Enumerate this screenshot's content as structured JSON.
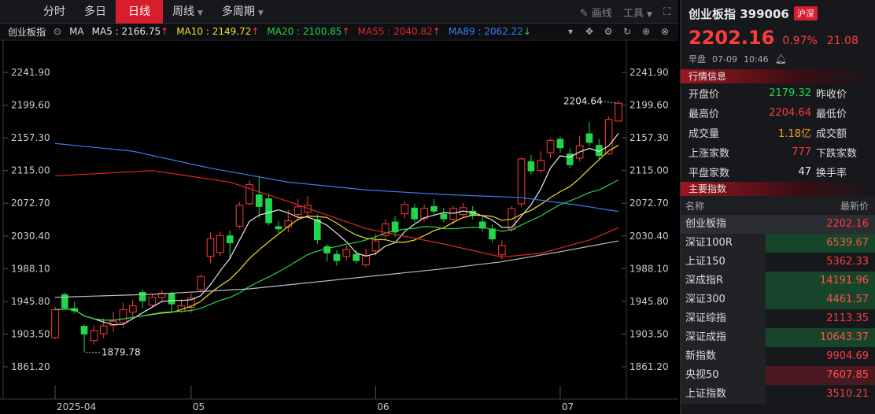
{
  "toolbar": {
    "tabs": [
      {
        "label": "分时",
        "active": false,
        "caret": false
      },
      {
        "label": "多日",
        "active": false,
        "caret": false
      },
      {
        "label": "日线",
        "active": true,
        "caret": false
      },
      {
        "label": "周线",
        "active": false,
        "caret": true
      },
      {
        "label": "多周期",
        "active": false,
        "caret": true
      }
    ],
    "draw_label": "画线",
    "tools_label": "工具"
  },
  "ma_bar": {
    "name": "创业板指",
    "indicator": "MA",
    "items": [
      {
        "label": "MA5 : 2166.75",
        "arrow": "↑",
        "color": "#e8e8e8"
      },
      {
        "label": "MA10 : 2149.72",
        "arrow": "↑",
        "color": "#f0e020"
      },
      {
        "label": "MA20 : 2100.85",
        "arrow": "↑",
        "color": "#22d64a"
      },
      {
        "label": "MA55 : 2040.82",
        "arrow": "↑",
        "color": "#e02828"
      },
      {
        "label": "MA89 : 2062.22",
        "arrow": "↓",
        "color": "#3a7cf0"
      }
    ]
  },
  "chart_data": {
    "type": "candlestick",
    "y_ticks": [
      "2241.90",
      "2199.60",
      "2157.30",
      "2115.00",
      "2072.70",
      "2030.40",
      "1988.10",
      "1945.80",
      "1903.50",
      "1861.20"
    ],
    "x_labels": [
      "2025-04",
      "05",
      "06",
      "07"
    ],
    "annotations": [
      {
        "text": "2204.64",
        "value": 2204.64
      },
      {
        "text": "1879.78",
        "value": 1879.78
      }
    ],
    "candles": [
      {
        "o": 1899,
        "c": 1935,
        "h": 1939,
        "l": 1897
      },
      {
        "o": 1955,
        "c": 1937,
        "h": 1957,
        "l": 1935
      },
      {
        "o": 1937,
        "c": 1933,
        "h": 1945,
        "l": 1930
      },
      {
        "o": 1914,
        "c": 1903,
        "h": 1916,
        "l": 1880
      },
      {
        "o": 1895,
        "c": 1908,
        "h": 1915,
        "l": 1890
      },
      {
        "o": 1904,
        "c": 1914,
        "h": 1924,
        "l": 1898
      },
      {
        "o": 1915,
        "c": 1920,
        "h": 1932,
        "l": 1906
      },
      {
        "o": 1918,
        "c": 1935,
        "h": 1944,
        "l": 1912
      },
      {
        "o": 1932,
        "c": 1940,
        "h": 1948,
        "l": 1926
      },
      {
        "o": 1958,
        "c": 1946,
        "h": 1961,
        "l": 1937
      },
      {
        "o": 1941,
        "c": 1951,
        "h": 1955,
        "l": 1937
      },
      {
        "o": 1951,
        "c": 1956,
        "h": 1960,
        "l": 1945
      },
      {
        "o": 1956,
        "c": 1942,
        "h": 1958,
        "l": 1933
      },
      {
        "o": 1933,
        "c": 1940,
        "h": 1949,
        "l": 1931
      },
      {
        "o": 1938,
        "c": 1950,
        "h": 1956,
        "l": 1931
      },
      {
        "o": 1961,
        "c": 1978,
        "h": 1980,
        "l": 1958
      },
      {
        "o": 2004,
        "c": 2027,
        "h": 2035,
        "l": 1995
      },
      {
        "o": 2009,
        "c": 2031,
        "h": 2036,
        "l": 2004
      },
      {
        "o": 2031,
        "c": 2021,
        "h": 2038,
        "l": 2000
      },
      {
        "o": 2043,
        "c": 2070,
        "h": 2074,
        "l": 2040
      },
      {
        "o": 2072,
        "c": 2097,
        "h": 2102,
        "l": 2070
      },
      {
        "o": 2084,
        "c": 2068,
        "h": 2108,
        "l": 2054
      },
      {
        "o": 2079,
        "c": 2047,
        "h": 2085,
        "l": 2044
      },
      {
        "o": 2043,
        "c": 2039,
        "h": 2050,
        "l": 2034
      },
      {
        "o": 2042,
        "c": 2050,
        "h": 2064,
        "l": 2035
      },
      {
        "o": 2058,
        "c": 2068,
        "h": 2078,
        "l": 2050
      },
      {
        "o": 2061,
        "c": 2070,
        "h": 2082,
        "l": 2054
      },
      {
        "o": 2052,
        "c": 2025,
        "h": 2058,
        "l": 2020
      },
      {
        "o": 2017,
        "c": 2008,
        "h": 2020,
        "l": 1997
      },
      {
        "o": 2007,
        "c": 1998,
        "h": 2012,
        "l": 1992
      },
      {
        "o": 2004,
        "c": 2013,
        "h": 2018,
        "l": 1999
      },
      {
        "o": 2007,
        "c": 1998,
        "h": 2012,
        "l": 1995
      },
      {
        "o": 1993,
        "c": 2005,
        "h": 2014,
        "l": 1990
      },
      {
        "o": 2011,
        "c": 2024,
        "h": 2033,
        "l": 2005
      },
      {
        "o": 2031,
        "c": 2046,
        "h": 2052,
        "l": 2027
      },
      {
        "o": 2049,
        "c": 2035,
        "h": 2056,
        "l": 2029
      },
      {
        "o": 2059,
        "c": 2071,
        "h": 2075,
        "l": 2053
      },
      {
        "o": 2067,
        "c": 2052,
        "h": 2072,
        "l": 2048
      },
      {
        "o": 2053,
        "c": 2066,
        "h": 2071,
        "l": 2049
      },
      {
        "o": 2069,
        "c": 2062,
        "h": 2078,
        "l": 2058
      },
      {
        "o": 2059,
        "c": 2052,
        "h": 2067,
        "l": 2048
      },
      {
        "o": 2052,
        "c": 2066,
        "h": 2069,
        "l": 2046
      },
      {
        "o": 2058,
        "c": 2067,
        "h": 2073,
        "l": 2055
      },
      {
        "o": 2063,
        "c": 2057,
        "h": 2069,
        "l": 2052
      },
      {
        "o": 2049,
        "c": 2040,
        "h": 2056,
        "l": 2036
      },
      {
        "o": 2040,
        "c": 2026,
        "h": 2045,
        "l": 2022
      },
      {
        "o": 2006,
        "c": 2018,
        "h": 2025,
        "l": 2000
      },
      {
        "o": 2039,
        "c": 2066,
        "h": 2069,
        "l": 2035
      },
      {
        "o": 2072,
        "c": 2130,
        "h": 2132,
        "l": 2068
      },
      {
        "o": 2127,
        "c": 2114,
        "h": 2135,
        "l": 2110
      },
      {
        "o": 2115,
        "c": 2128,
        "h": 2140,
        "l": 2112
      },
      {
        "o": 2138,
        "c": 2154,
        "h": 2157,
        "l": 2131
      },
      {
        "o": 2156,
        "c": 2144,
        "h": 2159,
        "l": 2138
      },
      {
        "o": 2137,
        "c": 2122,
        "h": 2144,
        "l": 2118
      },
      {
        "o": 2131,
        "c": 2147,
        "h": 2160,
        "l": 2127
      },
      {
        "o": 2163,
        "c": 2151,
        "h": 2178,
        "l": 2146
      },
      {
        "o": 2148,
        "c": 2134,
        "h": 2156,
        "l": 2130
      },
      {
        "o": 2137,
        "c": 2181,
        "h": 2185,
        "l": 2135
      },
      {
        "o": 2179,
        "c": 2202,
        "h": 2205,
        "l": 2178
      }
    ]
  },
  "right_panel": {
    "title": "创业板指 399006",
    "exchange": "沪深",
    "price": "2202.16",
    "change_pct": "0.97%",
    "change": "21.08",
    "session": "早盘",
    "date": "07-09",
    "time": "10:46",
    "quote_header": "行情信息",
    "quotes": [
      {
        "k": "开盘价",
        "v": "2179.32",
        "vc": "#22d64a",
        "k2": "昨收价"
      },
      {
        "k": "最高价",
        "v": "2204.64",
        "vc": "#ff3b3b",
        "k2": "最低价"
      },
      {
        "k": "成交量",
        "v": "1.18亿",
        "vc": "#f0a020",
        "k2": "成交额"
      },
      {
        "k": "上涨家数",
        "v": "777",
        "vc": "#ff3b3b",
        "k2": "下跌家数"
      },
      {
        "k": "平盘家数",
        "v": "47",
        "vc": "#e8e8e8",
        "k2": "换手率"
      }
    ],
    "index_header": "主要指数",
    "index_col_name": "名称",
    "index_col_price": "最新价",
    "indices": [
      {
        "name": "创业板指",
        "price": "2202.16",
        "bg": "#2b2d32",
        "pc": "#ff3b3b"
      },
      {
        "name": "深证100R",
        "price": "6539.67",
        "bg": "#17452a",
        "pc": "#ff5050"
      },
      {
        "name": "上证150",
        "price": "5362.33",
        "bg": "#16181c",
        "pc": "#ff3b3b"
      },
      {
        "name": "深成指R",
        "price": "14191.96",
        "bg": "#17452a",
        "pc": "#ff5050"
      },
      {
        "name": "深证300",
        "price": "4461.57",
        "bg": "#17452a",
        "pc": "#ff5050"
      },
      {
        "name": "深证综指",
        "price": "2113.35",
        "bg": "#16181c",
        "pc": "#ff3b3b"
      },
      {
        "name": "深证成指",
        "price": "10643.37",
        "bg": "#17452a",
        "pc": "#ff5050"
      },
      {
        "name": "新指数",
        "price": "9904.69",
        "bg": "#16181c",
        "pc": "#ff3b3b"
      },
      {
        "name": "央视50",
        "price": "7607.85",
        "bg": "#4a1a20",
        "pc": "#ff5050"
      },
      {
        "name": "上证指数",
        "price": "3510.21",
        "bg": "#16181c",
        "pc": "#ff3b3b"
      }
    ]
  }
}
